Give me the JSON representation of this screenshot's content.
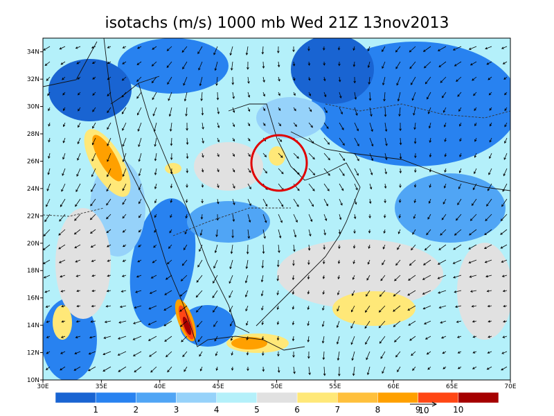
{
  "title": "isotachs (m/s) 1000 mb Wed 21Z 13nov2013",
  "lat_labels": [
    "10N",
    "12N",
    "14N",
    "16N",
    "18N",
    "20N",
    "22N",
    "24N",
    "26N",
    "28N",
    "30N",
    "32N",
    "34N"
  ],
  "lon_labels": [
    "30E",
    "35E",
    "40E",
    "45E",
    "50E",
    "55E",
    "60E",
    "65E",
    "70E"
  ],
  "colorbar_labels": [
    "1",
    "2",
    "3",
    "4",
    "5",
    "6",
    "7",
    "8",
    "9",
    "10"
  ],
  "reference_vector_label": "10"
}
